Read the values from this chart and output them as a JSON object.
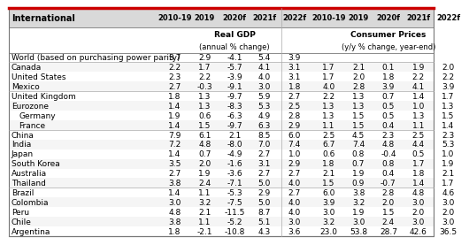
{
  "title": "International",
  "col_headers": [
    "2010-19",
    "2019",
    "2020f",
    "2021f",
    "2022f",
    "2010-19",
    "2019",
    "2020f",
    "2021f",
    "2022f"
  ],
  "group1_label": "Real GDP",
  "group1_sublabel": "(annual % change)",
  "group2_label": "Consumer Prices",
  "group2_sublabel": "(y/y % change, year-end)",
  "rows": [
    {
      "label": "World (based on purchasing power parity)",
      "indent": 0,
      "gdp": [
        3.7,
        2.9,
        -4.1,
        5.4,
        3.9
      ],
      "cpi": [
        null,
        null,
        null,
        null,
        null
      ],
      "gap_before": false
    },
    {
      "label": "Canada",
      "indent": 0,
      "gdp": [
        2.2,
        1.7,
        -5.7,
        4.1,
        3.1
      ],
      "cpi": [
        1.7,
        2.1,
        0.1,
        1.9,
        2.0
      ],
      "gap_before": true
    },
    {
      "label": "United States",
      "indent": 0,
      "gdp": [
        2.3,
        2.2,
        -3.9,
        4.0,
        3.1
      ],
      "cpi": [
        1.7,
        2.0,
        1.8,
        2.2,
        2.2
      ],
      "gap_before": false
    },
    {
      "label": "Mexico",
      "indent": 0,
      "gdp": [
        2.7,
        -0.3,
        -9.1,
        3.0,
        1.8
      ],
      "cpi": [
        4.0,
        2.8,
        3.9,
        4.1,
        3.9
      ],
      "gap_before": false
    },
    {
      "label": "United Kingdom",
      "indent": 0,
      "gdp": [
        1.8,
        1.3,
        -9.7,
        5.9,
        2.7
      ],
      "cpi": [
        2.2,
        1.3,
        0.7,
        1.4,
        1.7
      ],
      "gap_before": true
    },
    {
      "label": "Eurozone",
      "indent": 0,
      "gdp": [
        1.4,
        1.3,
        -8.3,
        5.3,
        2.5
      ],
      "cpi": [
        1.3,
        1.3,
        0.5,
        1.0,
        1.3
      ],
      "gap_before": false
    },
    {
      "label": "Germany",
      "indent": 1,
      "gdp": [
        1.9,
        0.6,
        -6.3,
        4.9,
        2.8
      ],
      "cpi": [
        1.3,
        1.5,
        0.5,
        1.3,
        1.5
      ],
      "gap_before": false
    },
    {
      "label": "France",
      "indent": 1,
      "gdp": [
        1.4,
        1.5,
        -9.7,
        6.3,
        2.9
      ],
      "cpi": [
        1.1,
        1.5,
        0.4,
        1.1,
        1.4
      ],
      "gap_before": false
    },
    {
      "label": "China",
      "indent": 0,
      "gdp": [
        7.9,
        6.1,
        2.1,
        8.5,
        6.0
      ],
      "cpi": [
        2.5,
        4.5,
        2.3,
        2.5,
        2.3
      ],
      "gap_before": true
    },
    {
      "label": "India",
      "indent": 0,
      "gdp": [
        7.2,
        4.8,
        -8.0,
        7.0,
        7.4
      ],
      "cpi": [
        6.7,
        7.4,
        4.8,
        4.4,
        5.3
      ],
      "gap_before": false
    },
    {
      "label": "Japan",
      "indent": 0,
      "gdp": [
        1.4,
        0.7,
        -4.9,
        2.7,
        1.0
      ],
      "cpi": [
        0.6,
        0.8,
        -0.4,
        0.5,
        1.0
      ],
      "gap_before": false
    },
    {
      "label": "South Korea",
      "indent": 0,
      "gdp": [
        3.5,
        2.0,
        -1.6,
        3.1,
        2.9
      ],
      "cpi": [
        1.8,
        0.7,
        0.8,
        1.7,
        1.9
      ],
      "gap_before": false
    },
    {
      "label": "Australia",
      "indent": 0,
      "gdp": [
        2.7,
        1.9,
        -3.6,
        2.7,
        2.7
      ],
      "cpi": [
        2.1,
        1.9,
        0.4,
        1.8,
        2.1
      ],
      "gap_before": false
    },
    {
      "label": "Thailand",
      "indent": 0,
      "gdp": [
        3.8,
        2.4,
        -7.1,
        5.0,
        4.0
      ],
      "cpi": [
        1.5,
        0.9,
        -0.7,
        1.4,
        1.7
      ],
      "gap_before": false
    },
    {
      "label": "Brazil",
      "indent": 0,
      "gdp": [
        1.4,
        1.1,
        -5.3,
        2.9,
        2.7
      ],
      "cpi": [
        6.0,
        3.8,
        2.8,
        4.8,
        4.6
      ],
      "gap_before": true
    },
    {
      "label": "Colombia",
      "indent": 0,
      "gdp": [
        3.0,
        3.2,
        -7.5,
        5.0,
        4.0
      ],
      "cpi": [
        3.9,
        3.2,
        2.0,
        3.0,
        3.0
      ],
      "gap_before": false
    },
    {
      "label": "Peru",
      "indent": 0,
      "gdp": [
        4.8,
        2.1,
        -11.5,
        8.7,
        4.0
      ],
      "cpi": [
        3.0,
        1.9,
        1.5,
        2.0,
        2.0
      ],
      "gap_before": false
    },
    {
      "label": "Chile",
      "indent": 0,
      "gdp": [
        3.8,
        1.1,
        -5.2,
        5.1,
        3.0
      ],
      "cpi": [
        3.2,
        3.0,
        2.4,
        3.0,
        3.0
      ],
      "gap_before": false
    },
    {
      "label": "Argentina",
      "indent": 0,
      "gdp": [
        1.8,
        -2.1,
        -10.8,
        4.3,
        3.6
      ],
      "cpi": [
        23.0,
        53.8,
        28.7,
        42.6,
        36.5
      ],
      "gap_before": false
    }
  ],
  "bg_color": "#ffffff",
  "header_bg": "#d9d9d9",
  "text_color": "#000000",
  "font_size": 6.5,
  "header_font_size": 7.0
}
